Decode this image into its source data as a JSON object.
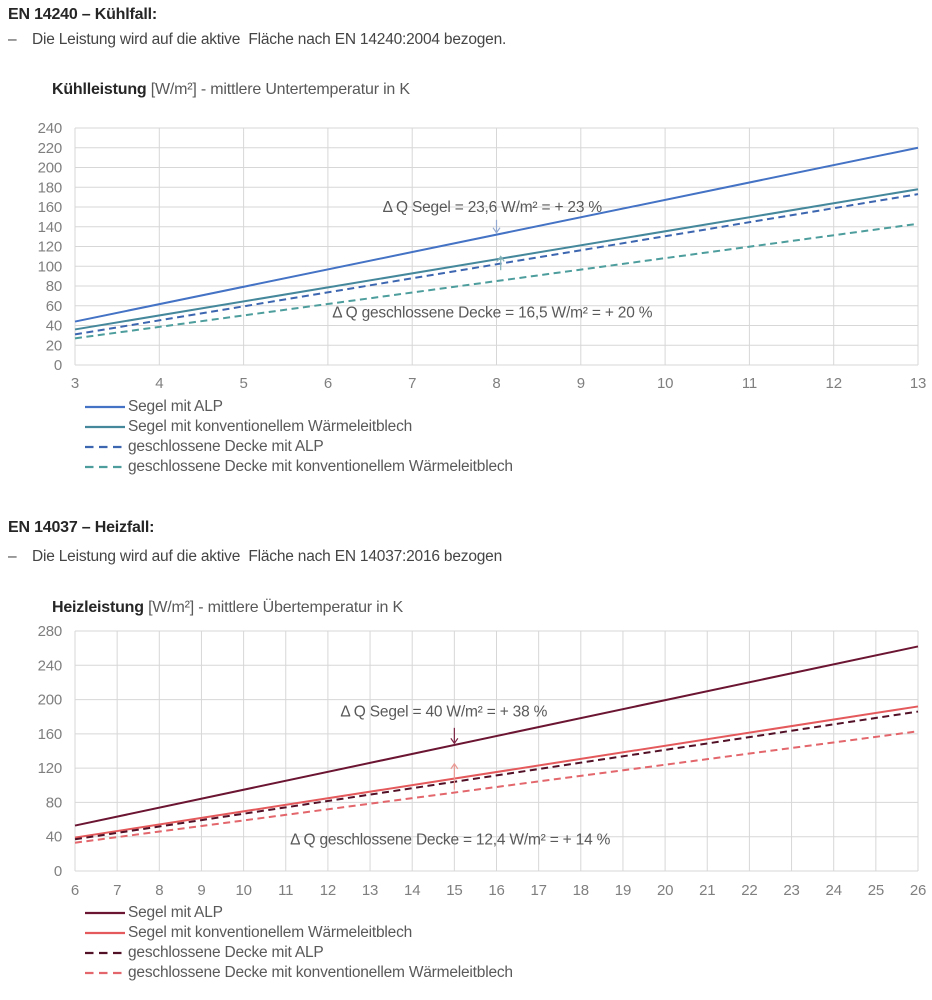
{
  "page": {
    "background": "#ffffff"
  },
  "sections": [
    {
      "heading": "EN 14240 – Kühlfall:",
      "bullet_dash": "–",
      "bullet_text": "Die Leistung wird auf die aktive  Fläche nach EN 14240:2004 bezogen.",
      "chart_title_bold": "Kühlleistung",
      "chart_title_rest": " [W/m²] - mittlere Untertemperatur in K"
    },
    {
      "heading": "EN 14037 – Heizfall:",
      "bullet_dash": "–",
      "bullet_text": "Die Leistung wird auf die aktive  Fläche nach EN 14037:2016 bezogen",
      "chart_title_bold": "Heizleistung",
      "chart_title_rest": " [W/m²] - mittlere Übertemperatur in K"
    }
  ],
  "chart_data": [
    {
      "type": "line",
      "title": "Kühlleistung [W/m²] - mittlere Untertemperatur in K",
      "xlabel": "mittlere Untertemperatur in K",
      "ylabel": "Kühlleistung [W/m²]",
      "xlim": [
        3,
        13
      ],
      "ylim": [
        0,
        240
      ],
      "x_ticks": [
        3,
        4,
        5,
        6,
        7,
        8,
        9,
        10,
        11,
        12,
        13
      ],
      "y_ticks": [
        0,
        20,
        40,
        60,
        80,
        100,
        120,
        140,
        160,
        180,
        200,
        220,
        240
      ],
      "grid": true,
      "legend_position": "bottom-left",
      "series": [
        {
          "name": "Segel mit ALP",
          "color": "#4472c4",
          "dash": "solid",
          "points": [
            [
              3,
              44
            ],
            [
              13,
              220
            ]
          ]
        },
        {
          "name": "Segel mit konventionellem Wärmeleitblech",
          "color": "#45889c",
          "dash": "solid",
          "points": [
            [
              3,
              36
            ],
            [
              13,
              178
            ]
          ]
        },
        {
          "name": "geschlossene Decke mit ALP",
          "color": "#3d66b0",
          "dash": "dashed",
          "points": [
            [
              3,
              31
            ],
            [
              13,
              173
            ]
          ]
        },
        {
          "name": "geschlossene Decke mit konventionellem Wärmeleitblech",
          "color": "#4d9d9d",
          "dash": "dashed",
          "points": [
            [
              3,
              27
            ],
            [
              13,
              143
            ]
          ]
        }
      ],
      "annotations": [
        {
          "text": "Δ Q Segel = 23,6 W/m² = + 23 %",
          "x": 7.95,
          "y": 160
        },
        {
          "text": "Δ Q geschlossene Decke = 16,5 W/m² = + 20 %",
          "x": 7.95,
          "y": 53
        }
      ],
      "arrows": [
        {
          "x": 8,
          "from_y": 147,
          "to_y": 134,
          "color": "#93a9cf"
        },
        {
          "x": 8.05,
          "from_y": 96,
          "to_y": 110,
          "color": "#86b3b8"
        }
      ]
    },
    {
      "type": "line",
      "title": "Heizleistung [W/m²] - mittlere Übertemperatur in K",
      "xlabel": "mittlere Übertemperatur in K",
      "ylabel": "Heizleistung [W/m²]",
      "xlim": [
        6,
        26
      ],
      "ylim": [
        0,
        280
      ],
      "x_ticks": [
        6,
        7,
        8,
        9,
        10,
        11,
        12,
        13,
        14,
        15,
        16,
        17,
        18,
        19,
        20,
        21,
        22,
        23,
        24,
        25,
        26
      ],
      "y_ticks": [
        0,
        40,
        80,
        120,
        160,
        200,
        240,
        280
      ],
      "grid": true,
      "legend_position": "bottom-left",
      "series": [
        {
          "name": "Segel mit ALP",
          "color": "#6b1532",
          "dash": "solid",
          "points": [
            [
              6,
              53
            ],
            [
              26,
              262
            ]
          ]
        },
        {
          "name": "Segel mit konventionellem Wärmeleitblech",
          "color": "#e45a5c",
          "dash": "solid",
          "points": [
            [
              6,
              39
            ],
            [
              26,
              192
            ]
          ]
        },
        {
          "name": "geschlossene Decke mit ALP",
          "color": "#521026",
          "dash": "dashed",
          "points": [
            [
              6,
              37
            ],
            [
              26,
              186
            ]
          ]
        },
        {
          "name": "geschlossene Decke mit konventionellem Wärmeleitblech",
          "color": "#e2666b",
          "dash": "dashed",
          "points": [
            [
              6,
              33
            ],
            [
              26,
              163
            ]
          ]
        }
      ],
      "annotations": [
        {
          "text": "Δ Q Segel = 40 W/m² = + 38 %",
          "x": 14.75,
          "y": 186
        },
        {
          "text": "Δ Q geschlossene Decke = 12,4 W/m² = + 14 %",
          "x": 14.9,
          "y": 37
        }
      ],
      "arrows": [
        {
          "x": 15,
          "from_y": 167,
          "to_y": 149,
          "color": "#7a2242"
        },
        {
          "x": 15,
          "from_y": 95,
          "to_y": 125,
          "color": "#e89a94"
        }
      ]
    }
  ],
  "style": {
    "gridline_color": "#d7d7d7",
    "tick_label_color": "#7f7f7f",
    "legend_text_color": "#595959",
    "annotation_text_color": "#595959"
  }
}
